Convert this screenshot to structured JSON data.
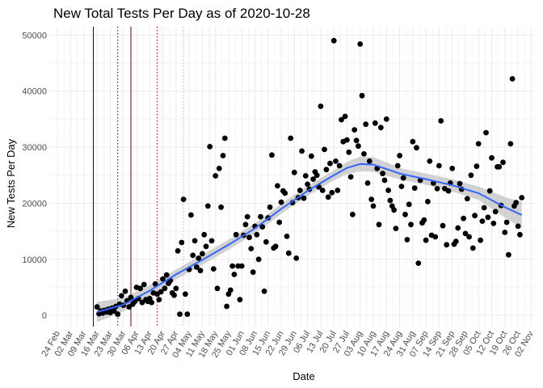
{
  "chart_data": {
    "type": "scatter",
    "title": "New Total Tests Per Day as of 2020-10-28",
    "xlabel": "Date",
    "ylabel": "New Tests Per Day",
    "x_tick_labels": [
      "24 Feb",
      "02 Mar",
      "09 Mar",
      "16 Mar",
      "23 Mar",
      "30 Mar",
      "06 Apr",
      "13 Apr",
      "20 Apr",
      "27 Apr",
      "04 May",
      "11 May",
      "18 May",
      "25 May",
      "01 Jun",
      "08 Jun",
      "15 Jun",
      "22 Jun",
      "29 Jun",
      "06 Jul",
      "13 Jul",
      "20 Jul",
      "27 Jul",
      "03 Aug",
      "10 Aug",
      "17 Aug",
      "24 Aug",
      "31 Aug",
      "07 Sep",
      "14 Sep",
      "21 Sep",
      "28 Sep",
      "05 Oct",
      "12 Oct",
      "19 Oct",
      "26 Oct",
      "02 Nov"
    ],
    "y_ticks": [
      0,
      10000,
      20000,
      30000,
      40000,
      50000
    ],
    "y_tick_labels": [
      "0",
      "10000",
      "20000",
      "30000",
      "40000",
      "50000"
    ],
    "xlim": [
      "2020-02-20",
      "2020-11-04"
    ],
    "ylim": [
      -2000,
      51500
    ],
    "grid": true,
    "points": [
      [
        "2020-03-16",
        1500
      ],
      [
        "2020-03-17",
        300
      ],
      [
        "2020-03-18",
        800
      ],
      [
        "2020-03-19",
        400
      ],
      [
        "2020-03-20",
        900
      ],
      [
        "2020-03-21",
        600
      ],
      [
        "2020-03-22",
        1100
      ],
      [
        "2020-03-23",
        500
      ],
      [
        "2020-03-24",
        1300
      ],
      [
        "2020-03-25",
        800
      ],
      [
        "2020-03-26",
        1600
      ],
      [
        "2020-03-27",
        200
      ],
      [
        "2020-03-28",
        2000
      ],
      [
        "2020-03-29",
        3500
      ],
      [
        "2020-03-30",
        1800
      ],
      [
        "2020-03-31",
        4300
      ],
      [
        "2020-04-01",
        2600
      ],
      [
        "2020-04-02",
        1500
      ],
      [
        "2020-04-03",
        3200
      ],
      [
        "2020-04-04",
        2000
      ],
      [
        "2020-04-05",
        2500
      ],
      [
        "2020-04-06",
        5000
      ],
      [
        "2020-04-07",
        3000
      ],
      [
        "2020-04-08",
        4800
      ],
      [
        "2020-04-09",
        2300
      ],
      [
        "2020-04-10",
        5500
      ],
      [
        "2020-04-11",
        2800
      ],
      [
        "2020-04-12",
        2500
      ],
      [
        "2020-04-13",
        3000
      ],
      [
        "2020-04-14",
        2300
      ],
      [
        "2020-04-15",
        4000
      ],
      [
        "2020-04-16",
        5600
      ],
      [
        "2020-04-17",
        3800
      ],
      [
        "2020-04-18",
        2800
      ],
      [
        "2020-04-19",
        4200
      ],
      [
        "2020-04-20",
        6500
      ],
      [
        "2020-04-21",
        4800
      ],
      [
        "2020-04-22",
        7200
      ],
      [
        "2020-04-23",
        5700
      ],
      [
        "2020-04-24",
        6200
      ],
      [
        "2020-04-25",
        4000
      ],
      [
        "2020-04-26",
        3600
      ],
      [
        "2020-04-27",
        4800
      ],
      [
        "2020-04-28",
        11500
      ],
      [
        "2020-04-29",
        200
      ],
      [
        "2020-04-30",
        13000
      ],
      [
        "2020-05-01",
        20700
      ],
      [
        "2020-05-02",
        3800
      ],
      [
        "2020-05-03",
        200
      ],
      [
        "2020-05-04",
        8200
      ],
      [
        "2020-05-05",
        17900
      ],
      [
        "2020-05-06",
        10700
      ],
      [
        "2020-05-07",
        13300
      ],
      [
        "2020-05-08",
        8600
      ],
      [
        "2020-05-09",
        10200
      ],
      [
        "2020-05-10",
        8000
      ],
      [
        "2020-05-11",
        11000
      ],
      [
        "2020-05-12",
        14400
      ],
      [
        "2020-05-13",
        12300
      ],
      [
        "2020-05-14",
        19500
      ],
      [
        "2020-05-15",
        30100
      ],
      [
        "2020-05-16",
        13300
      ],
      [
        "2020-05-17",
        8300
      ],
      [
        "2020-05-18",
        24900
      ],
      [
        "2020-05-19",
        4800
      ],
      [
        "2020-05-20",
        26200
      ],
      [
        "2020-05-21",
        19300
      ],
      [
        "2020-05-22",
        28500
      ],
      [
        "2020-05-23",
        31600
      ],
      [
        "2020-05-24",
        1600
      ],
      [
        "2020-05-25",
        3800
      ],
      [
        "2020-05-26",
        4500
      ],
      [
        "2020-05-27",
        8800
      ],
      [
        "2020-05-28",
        7300
      ],
      [
        "2020-05-29",
        14400
      ],
      [
        "2020-05-30",
        8800
      ],
      [
        "2020-05-31",
        2800
      ],
      [
        "2020-06-01",
        8800
      ],
      [
        "2020-06-02",
        14300
      ],
      [
        "2020-06-03",
        16200
      ],
      [
        "2020-06-04",
        17600
      ],
      [
        "2020-06-05",
        13900
      ],
      [
        "2020-06-06",
        11900
      ],
      [
        "2020-06-07",
        7700
      ],
      [
        "2020-06-08",
        15900
      ],
      [
        "2020-06-09",
        14400
      ],
      [
        "2020-06-10",
        10000
      ],
      [
        "2020-06-11",
        17600
      ],
      [
        "2020-06-12",
        15800
      ],
      [
        "2020-06-13",
        4300
      ],
      [
        "2020-06-14",
        13100
      ],
      [
        "2020-06-15",
        17400
      ],
      [
        "2020-06-16",
        19300
      ],
      [
        "2020-06-17",
        28600
      ],
      [
        "2020-06-18",
        12000
      ],
      [
        "2020-06-19",
        12300
      ],
      [
        "2020-06-20",
        23100
      ],
      [
        "2020-06-21",
        16600
      ],
      [
        "2020-06-22",
        20200
      ],
      [
        "2020-06-23",
        22200
      ],
      [
        "2020-06-24",
        21800
      ],
      [
        "2020-06-25",
        14100
      ],
      [
        "2020-06-26",
        11100
      ],
      [
        "2020-06-27",
        31600
      ],
      [
        "2020-06-28",
        20100
      ],
      [
        "2020-06-29",
        25500
      ],
      [
        "2020-06-30",
        10200
      ],
      [
        "2020-07-01",
        21000
      ],
      [
        "2020-07-02",
        22300
      ],
      [
        "2020-07-03",
        29300
      ],
      [
        "2020-07-04",
        20900
      ],
      [
        "2020-07-05",
        24900
      ],
      [
        "2020-07-06",
        23400
      ],
      [
        "2020-07-07",
        22500
      ],
      [
        "2020-07-08",
        28400
      ],
      [
        "2020-07-09",
        24300
      ],
      [
        "2020-07-10",
        25600
      ],
      [
        "2020-07-11",
        25000
      ],
      [
        "2020-07-12",
        22900
      ],
      [
        "2020-07-13",
        37300
      ],
      [
        "2020-07-14",
        22300
      ],
      [
        "2020-07-15",
        29600
      ],
      [
        "2020-07-16",
        26000
      ],
      [
        "2020-07-17",
        21100
      ],
      [
        "2020-07-18",
        27100
      ],
      [
        "2020-07-19",
        21900
      ],
      [
        "2020-07-20",
        49000
      ],
      [
        "2020-07-21",
        27500
      ],
      [
        "2020-07-22",
        22300
      ],
      [
        "2020-07-23",
        26700
      ],
      [
        "2020-07-24",
        34900
      ],
      [
        "2020-07-25",
        31000
      ],
      [
        "2020-07-26",
        35500
      ],
      [
        "2020-07-27",
        31300
      ],
      [
        "2020-07-28",
        29100
      ],
      [
        "2020-07-29",
        24700
      ],
      [
        "2020-07-30",
        18000
      ],
      [
        "2020-07-31",
        33100
      ],
      [
        "2020-08-01",
        31200
      ],
      [
        "2020-08-02",
        30200
      ],
      [
        "2020-08-03",
        48400
      ],
      [
        "2020-08-04",
        39200
      ],
      [
        "2020-08-05",
        28800
      ],
      [
        "2020-08-06",
        34100
      ],
      [
        "2020-08-07",
        23600
      ],
      [
        "2020-08-08",
        27500
      ],
      [
        "2020-08-09",
        20700
      ],
      [
        "2020-08-10",
        19500
      ],
      [
        "2020-08-11",
        34300
      ],
      [
        "2020-08-12",
        26200
      ],
      [
        "2020-08-13",
        16200
      ],
      [
        "2020-08-14",
        33500
      ],
      [
        "2020-08-15",
        25300
      ],
      [
        "2020-08-16",
        24100
      ],
      [
        "2020-08-17",
        35000
      ],
      [
        "2020-08-18",
        22300
      ],
      [
        "2020-08-19",
        20500
      ],
      [
        "2020-08-20",
        19500
      ],
      [
        "2020-08-21",
        18800
      ],
      [
        "2020-08-22",
        15500
      ],
      [
        "2020-08-23",
        26700
      ],
      [
        "2020-08-24",
        28500
      ],
      [
        "2020-08-25",
        23000
      ],
      [
        "2020-08-26",
        24500
      ],
      [
        "2020-08-27",
        18000
      ],
      [
        "2020-08-28",
        13500
      ],
      [
        "2020-08-29",
        19800
      ],
      [
        "2020-08-30",
        16200
      ],
      [
        "2020-08-31",
        31000
      ],
      [
        "2020-09-01",
        22700
      ],
      [
        "2020-09-02",
        29900
      ],
      [
        "2020-09-03",
        9300
      ],
      [
        "2020-09-04",
        24100
      ],
      [
        "2020-09-05",
        16500
      ],
      [
        "2020-09-06",
        17000
      ],
      [
        "2020-09-07",
        13400
      ],
      [
        "2020-09-08",
        20300
      ],
      [
        "2020-09-09",
        27500
      ],
      [
        "2020-09-10",
        14300
      ],
      [
        "2020-09-11",
        23600
      ],
      [
        "2020-09-12",
        14000
      ],
      [
        "2020-09-13",
        22600
      ],
      [
        "2020-09-14",
        26700
      ],
      [
        "2020-09-15",
        34700
      ],
      [
        "2020-09-16",
        16000
      ],
      [
        "2020-09-17",
        22600
      ],
      [
        "2020-09-18",
        12600
      ],
      [
        "2020-09-19",
        22200
      ],
      [
        "2020-09-20",
        23600
      ],
      [
        "2020-09-21",
        26200
      ],
      [
        "2020-09-22",
        12700
      ],
      [
        "2020-09-23",
        13200
      ],
      [
        "2020-09-24",
        15600
      ],
      [
        "2020-09-25",
        23500
      ],
      [
        "2020-09-26",
        22500
      ],
      [
        "2020-09-27",
        17300
      ],
      [
        "2020-09-28",
        14600
      ],
      [
        "2020-09-29",
        20800
      ],
      [
        "2020-09-30",
        14000
      ],
      [
        "2020-10-01",
        25000
      ],
      [
        "2020-10-02",
        12000
      ],
      [
        "2020-10-03",
        17800
      ],
      [
        "2020-10-04",
        26600
      ],
      [
        "2020-10-05",
        30600
      ],
      [
        "2020-10-06",
        13400
      ],
      [
        "2020-10-07",
        16800
      ],
      [
        "2020-10-08",
        19200
      ],
      [
        "2020-10-09",
        32600
      ],
      [
        "2020-10-10",
        17500
      ],
      [
        "2020-10-11",
        22200
      ],
      [
        "2020-10-12",
        28100
      ],
      [
        "2020-10-13",
        16400
      ],
      [
        "2020-10-14",
        18500
      ],
      [
        "2020-10-15",
        26500
      ],
      [
        "2020-10-16",
        26500
      ],
      [
        "2020-10-17",
        19600
      ],
      [
        "2020-10-18",
        27300
      ],
      [
        "2020-10-19",
        14800
      ],
      [
        "2020-10-20",
        16600
      ],
      [
        "2020-10-21",
        10800
      ],
      [
        "2020-10-22",
        30600
      ],
      [
        "2020-10-23",
        42200
      ],
      [
        "2020-10-24",
        19500
      ],
      [
        "2020-10-25",
        20100
      ],
      [
        "2020-10-26",
        15900
      ],
      [
        "2020-10-27",
        14400
      ],
      [
        "2020-10-28",
        21000
      ]
    ],
    "smooth": [
      [
        "2020-03-16",
        600
      ],
      [
        "2020-03-30",
        1900
      ],
      [
        "2020-04-13",
        4400
      ],
      [
        "2020-04-27",
        7300
      ],
      [
        "2020-05-11",
        9900
      ],
      [
        "2020-05-25",
        12600
      ],
      [
        "2020-06-08",
        15500
      ],
      [
        "2020-06-22",
        19000
      ],
      [
        "2020-07-06",
        22200
      ],
      [
        "2020-07-20",
        25000
      ],
      [
        "2020-07-27",
        26300
      ],
      [
        "2020-08-03",
        27000
      ],
      [
        "2020-08-10",
        26900
      ],
      [
        "2020-08-17",
        26100
      ],
      [
        "2020-08-24",
        25300
      ],
      [
        "2020-09-07",
        24300
      ],
      [
        "2020-09-21",
        23200
      ],
      [
        "2020-10-05",
        21800
      ],
      [
        "2020-10-19",
        19300
      ],
      [
        "2020-10-28",
        17900
      ]
    ],
    "smooth_se": [
      1800,
      1200,
      1000,
      900,
      900,
      900,
      900,
      900,
      900,
      900,
      1100,
      1300,
      1300,
      1200,
      1000,
      1000,
      1100,
      1200,
      1800,
      2400
    ],
    "vlines": [
      {
        "date": "2020-03-14",
        "color": "#00008b",
        "style": "solid"
      },
      {
        "date": "2020-03-27",
        "color": "#00008b",
        "style": "dotted"
      },
      {
        "date": "2020-04-03",
        "color": "#8b0000",
        "style": "solid"
      },
      {
        "date": "2020-04-17",
        "color": "#ff0000",
        "style": "dotted"
      },
      {
        "date": "2020-05-01",
        "color": "#ff9999",
        "style": "dotted"
      },
      {
        "date": "2020-05-15",
        "color": "#ffcccc",
        "style": "dotted"
      }
    ],
    "colors": {
      "points": "#000000",
      "smooth": "#3366ff",
      "ribbon": "#bfbfbf",
      "grid": "#ebebeb"
    }
  }
}
